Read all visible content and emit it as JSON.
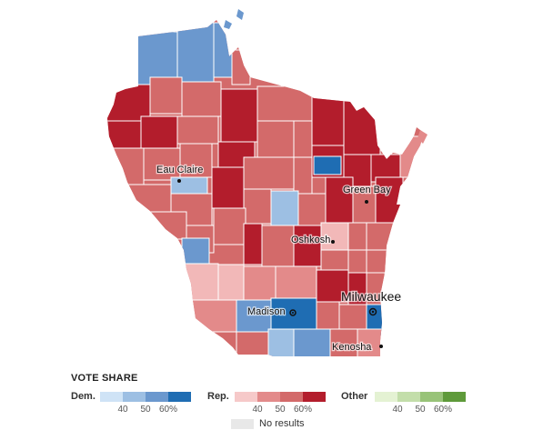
{
  "map": {
    "cities": [
      {
        "name": "Eau Claire"
      },
      {
        "name": "Green Bay"
      },
      {
        "name": "Oshkosh"
      },
      {
        "name": "Madison"
      },
      {
        "name": "Milwaukee"
      },
      {
        "name": "Kenosha"
      }
    ],
    "colors": {
      "dem_50": "#9dbfe3",
      "dem_60": "#6b98ce",
      "dem_60plus": "#1f6db3",
      "rep_40": "#f2b8b8",
      "rep_50": "#e38a8a",
      "rep_60": "#d36a6a",
      "rep_60plus": "#b31d2c",
      "border": "#ffffff"
    }
  },
  "legend": {
    "title": "VOTE SHARE",
    "dem": {
      "label": "Dem.",
      "ticks": [
        "40",
        "50",
        "60%"
      ],
      "colors": [
        "#cfe3f6",
        "#9dbfe3",
        "#6b98ce",
        "#1f6db3"
      ]
    },
    "rep": {
      "label": "Rep.",
      "ticks": [
        "40",
        "50",
        "60%"
      ],
      "colors": [
        "#f6c9c9",
        "#e38a8a",
        "#d36a6a",
        "#b31d2c"
      ]
    },
    "other": {
      "label": "Other",
      "ticks": [
        "40",
        "50",
        "60%"
      ],
      "colors": [
        "#e4f2d3",
        "#c3deaa",
        "#98c378",
        "#5e9a3a"
      ]
    },
    "no_results": {
      "label": "No results",
      "color": "#e8e8e8"
    }
  }
}
